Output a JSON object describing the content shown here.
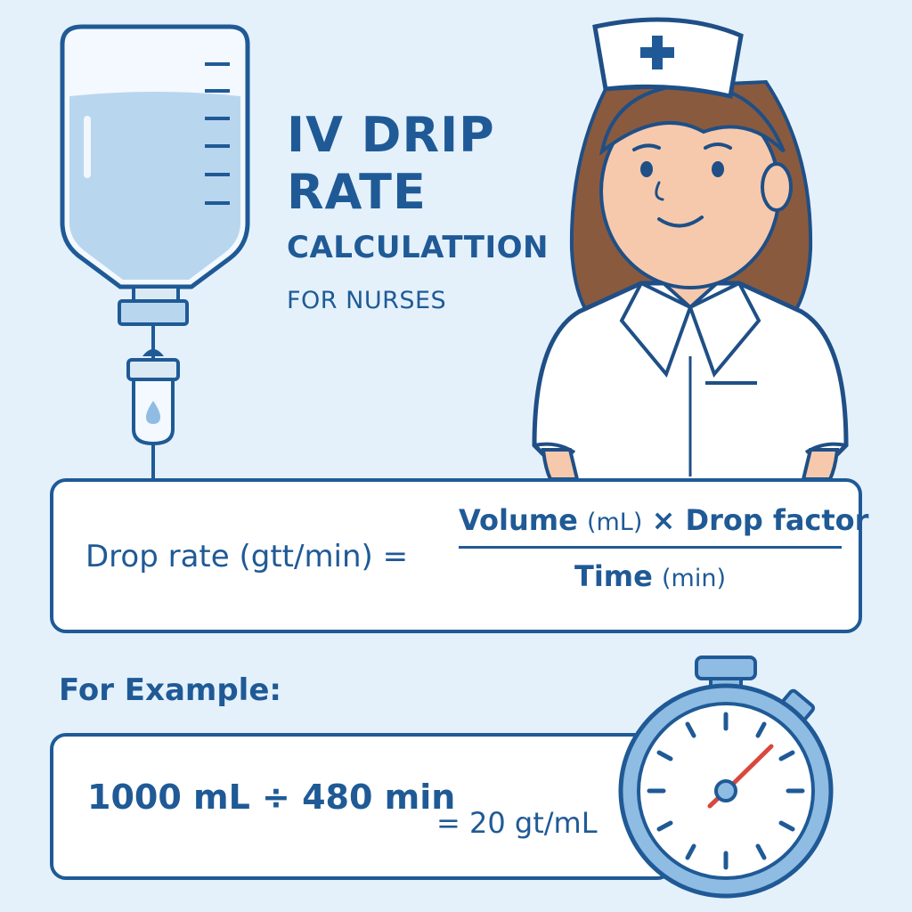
{
  "title": {
    "line1": "IV DRIP",
    "line2": "RATE",
    "line3": "CALCULATTION",
    "line4": "FOR NURSES"
  },
  "formula": {
    "lhs": "Drop rate (gtt/min) =",
    "numerator_main": "Volume",
    "numerator_unit": "(mL)",
    "numerator_rest": "× Drop factor",
    "denominator_main": "Time",
    "denominator_unit": "(min)"
  },
  "example": {
    "label": "For Example:",
    "lhs": "1000 mL ÷ 480 min",
    "rhs": "= 20 gt/mL"
  },
  "icons": [
    "iv-bag-icon",
    "drip-chamber-icon",
    "nurse-illustration",
    "nurse-cap-cross-icon",
    "stopwatch-icon"
  ],
  "colors": {
    "background": "#e4f1fb",
    "primary": "#1f5a96",
    "fluid": "#b9d6ef",
    "skin": "#f6c9ad",
    "hair": "#8a5a3e",
    "stopwatch_hand": "#d9473d"
  }
}
